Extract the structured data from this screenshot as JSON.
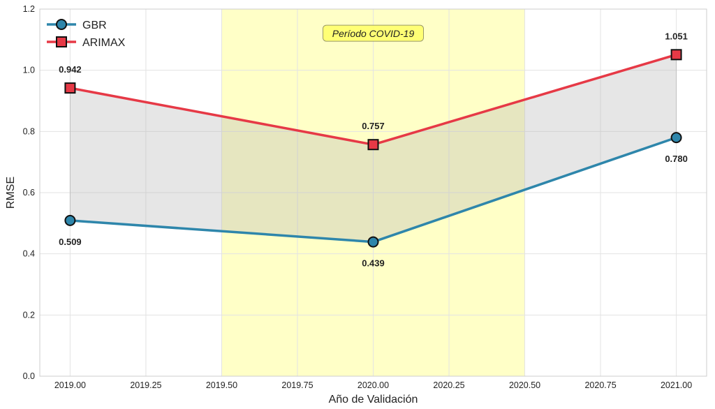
{
  "chart_data": {
    "type": "line",
    "x": [
      2019,
      2020,
      2021
    ],
    "xlabel": "Año de Validación",
    "ylabel": "RMSE",
    "xlim": [
      2018.9,
      2021.1
    ],
    "ylim": [
      0,
      1.2
    ],
    "xticks": [
      2019.0,
      2019.25,
      2019.5,
      2019.75,
      2020.0,
      2020.25,
      2020.5,
      2020.75,
      2021.0
    ],
    "xtick_labels": [
      "2019.00",
      "2019.25",
      "2019.50",
      "2019.75",
      "2020.00",
      "2020.25",
      "2020.50",
      "2020.75",
      "2021.00"
    ],
    "yticks": [
      0,
      0.2,
      0.4,
      0.6,
      0.8,
      1.0,
      1.2
    ],
    "ytick_labels": [
      "0.0",
      "0.2",
      "0.4",
      "0.6",
      "0.8",
      "1.0",
      "1.2"
    ],
    "grid": true,
    "legend_position": "top-left",
    "series": [
      {
        "name": "GBR",
        "values": [
          0.509,
          0.439,
          0.78
        ],
        "labels": [
          "0.509",
          "0.439",
          "0.780"
        ],
        "color": "#2e86ab",
        "marker": "circle",
        "label_position": "below"
      },
      {
        "name": "ARIMAX",
        "values": [
          0.942,
          0.757,
          1.051
        ],
        "labels": [
          "0.942",
          "0.757",
          "1.051"
        ],
        "color": "#e63946",
        "marker": "square",
        "label_position": "above"
      }
    ],
    "fill_between": {
      "color": "#b0b0b0"
    },
    "highlight_span": {
      "x0": 2019.5,
      "x1": 2020.5,
      "color": "#ffff99",
      "label": "Período COVID-19",
      "label_x": 2020.0,
      "label_y": 1.12
    }
  }
}
